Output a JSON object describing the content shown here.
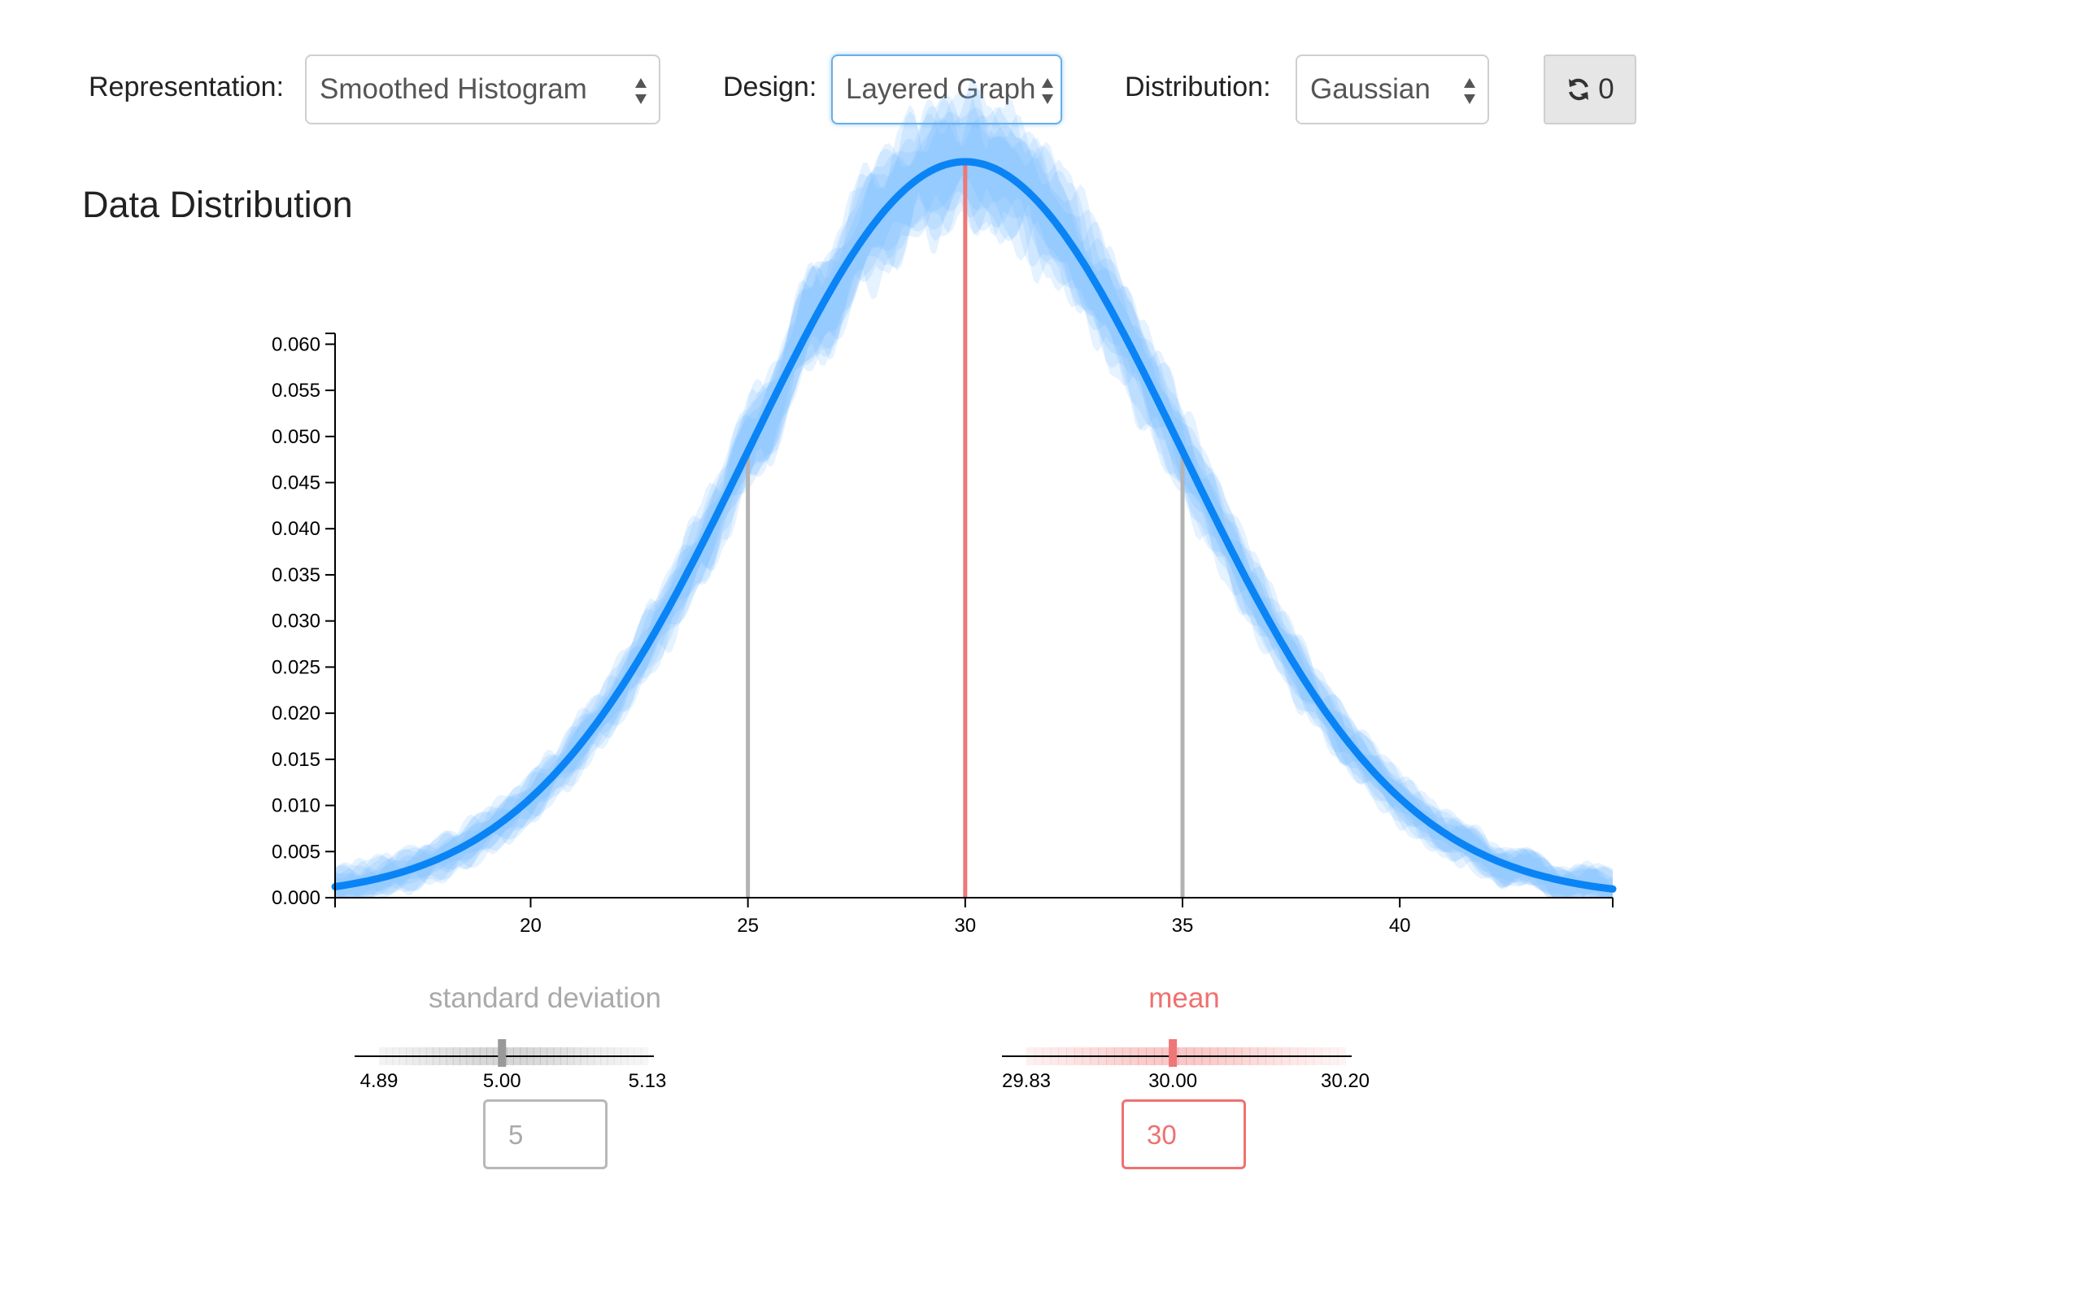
{
  "controls": {
    "representation_label": "Representation:",
    "representation_value": "Smoothed Histogram",
    "design_label": "Design:",
    "design_value": "Layered Graph",
    "distribution_label": "Distribution:",
    "distribution_value": "Gaussian",
    "reset_count": "0"
  },
  "section_title": "Data Distribution",
  "colors": {
    "curve": "#0a84f5",
    "band": "#66b3ff",
    "mean_line": "#ee7777",
    "sd_line": "#b3b3b3",
    "mean_text": "#f07070",
    "sd_text": "#aaaaaa"
  },
  "chart_data": {
    "type": "line",
    "distribution": "gaussian",
    "mean": 30,
    "sd": 5,
    "xlim": [
      15.5,
      44.9
    ],
    "ylim": [
      0,
      0.061
    ],
    "x_ticks": [
      "20",
      "25",
      "30",
      "35",
      "40"
    ],
    "x_tick_values": [
      20,
      25,
      30,
      35,
      40
    ],
    "y_ticks": [
      "0.000",
      "0.005",
      "0.010",
      "0.015",
      "0.020",
      "0.025",
      "0.030",
      "0.035",
      "0.040",
      "0.045",
      "0.050",
      "0.055",
      "0.060"
    ],
    "y_tick_values": [
      0,
      0.005,
      0.01,
      0.015,
      0.02,
      0.025,
      0.03,
      0.035,
      0.04,
      0.045,
      0.05,
      0.055,
      0.06
    ],
    "reference_lines": [
      {
        "x": 25,
        "role": "mean - sd"
      },
      {
        "x": 30,
        "role": "mean"
      },
      {
        "x": 35,
        "role": "mean + sd"
      }
    ],
    "grid": false
  },
  "sd_param": {
    "label": "standard deviation",
    "ticks": [
      "4.89",
      "5.00",
      "5.13"
    ],
    "tick_values": [
      4.89,
      5.0,
      5.13
    ],
    "value": "5"
  },
  "mean_param": {
    "label": "mean",
    "ticks": [
      "29.83",
      "30.00",
      "30.20"
    ],
    "tick_values": [
      29.83,
      30.0,
      30.2
    ],
    "value": "30"
  }
}
